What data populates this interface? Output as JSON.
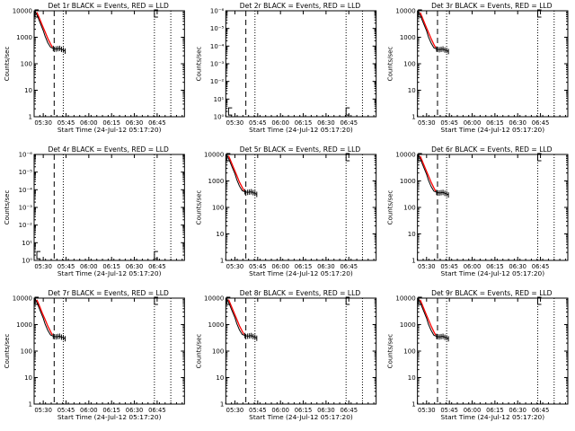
{
  "chart_data": [
    {
      "type": "line",
      "title": "Det 1r BLACK = Events, RED = LLD",
      "ylabel": "Counts/sec",
      "xlabel": "Start Time (24-Jul-12 05:17:20)",
      "yscale": "log",
      "ylim": [
        1,
        10000
      ],
      "ytick_labels": [
        "1",
        "10",
        "100",
        "1000",
        "10000"
      ],
      "xlim": [
        5.4,
        7.05
      ],
      "xtick_labels": [
        "05:30",
        "05:45",
        "06:00",
        "06:15",
        "06:30",
        "06:45"
      ],
      "dashed_line_x": 5.62,
      "dotted_lines_x": [
        5.72,
        6.72,
        6.9
      ],
      "series": [
        {
          "color": "#000000",
          "x": [
            5.41,
            5.44,
            5.47,
            5.5,
            5.52,
            5.55,
            5.58,
            5.61,
            5.64,
            5.66,
            5.68,
            5.7,
            5.72,
            5.74
          ],
          "y": [
            9800,
            5800,
            3200,
            1800,
            1100,
            620,
            420,
            380,
            360,
            370,
            380,
            350,
            330,
            300
          ]
        },
        {
          "color": "#ff0000",
          "x": [
            5.43,
            5.46,
            5.49,
            5.52,
            5.55,
            5.58,
            5.6
          ],
          "y": [
            8800,
            5000,
            2800,
            1600,
            900,
            560,
            420
          ]
        }
      ],
      "markers": [
        {
          "x": 5.41,
          "y": 10000
        },
        {
          "x": 6.72,
          "y": 10000
        }
      ]
    },
    {
      "type": "line",
      "title": "Det 2r BLACK = Events, RED = LLD",
      "ylabel": "Counts/sec",
      "xlabel": "Start Time (24-Jul-12 05:17:20)",
      "yscale": "log",
      "ylim": [
        1,
        1000000
      ],
      "ytick_labels": [
        "10⁰",
        "10¹",
        "10⁻²",
        "10⁻³",
        "10⁻⁴",
        "10⁻⁵",
        "10⁻⁶"
      ],
      "xlim": [
        5.4,
        7.05
      ],
      "xtick_labels": [
        "05:30",
        "05:45",
        "06:00",
        "06:15",
        "06:30",
        "06:45"
      ],
      "dashed_line_x": 5.62,
      "dotted_lines_x": [
        5.72,
        6.72,
        6.9
      ],
      "series": [],
      "markers": [
        {
          "x": 5.43,
          "y": 2
        },
        {
          "x": 6.72,
          "y": 2
        }
      ]
    },
    {
      "type": "line",
      "title": "Det 3r BLACK = Events, RED = LLD",
      "ylabel": "Counts/sec",
      "xlabel": "Start Time (24-Jul-12 05:17:20)",
      "yscale": "log",
      "ylim": [
        1,
        10000
      ],
      "ytick_labels": [
        "1",
        "10",
        "100",
        "1000",
        "10000"
      ],
      "xlim": [
        5.4,
        7.05
      ],
      "xtick_labels": [
        "05:30",
        "05:45",
        "06:00",
        "06:15",
        "06:30",
        "06:45"
      ],
      "dashed_line_x": 5.62,
      "dotted_lines_x": [
        5.72,
        6.72,
        6.9
      ],
      "series": [
        {
          "color": "#000000",
          "x": [
            5.41,
            5.44,
            5.47,
            5.5,
            5.52,
            5.55,
            5.58,
            5.61,
            5.64,
            5.66,
            5.68,
            5.7,
            5.72,
            5.74
          ],
          "y": [
            9500,
            5600,
            3100,
            1750,
            1050,
            600,
            400,
            360,
            340,
            350,
            360,
            330,
            320,
            290
          ]
        },
        {
          "color": "#ff0000",
          "x": [
            5.43,
            5.46,
            5.49,
            5.52,
            5.55,
            5.58,
            5.6
          ],
          "y": [
            8600,
            4900,
            2700,
            1550,
            880,
            540,
            400
          ]
        }
      ],
      "markers": [
        {
          "x": 5.41,
          "y": 10000
        },
        {
          "x": 6.72,
          "y": 10000
        }
      ]
    },
    {
      "type": "line",
      "title": "Det 4r BLACK = Events, RED = LLD",
      "ylabel": "Counts/sec",
      "xlabel": "Start Time (24-Jul-12 05:17:20)",
      "yscale": "log",
      "ylim": [
        1,
        1000000
      ],
      "ytick_labels": [
        "10⁰",
        "10¹",
        "10⁻²",
        "10⁻³",
        "10⁻⁴",
        "10⁻⁵",
        "10⁻⁶"
      ],
      "xlim": [
        5.4,
        7.05
      ],
      "xtick_labels": [
        "05:30",
        "05:45",
        "06:00",
        "06:15",
        "06:30",
        "06:45"
      ],
      "dashed_line_x": 5.62,
      "dotted_lines_x": [
        5.72,
        6.72,
        6.9
      ],
      "series": [],
      "markers": [
        {
          "x": 5.43,
          "y": 2
        },
        {
          "x": 6.72,
          "y": 2
        }
      ]
    },
    {
      "type": "line",
      "title": "Det 5r BLACK = Events, RED = LLD",
      "ylabel": "Counts/sec",
      "xlabel": "Start Time (24-Jul-12 05:17:20)",
      "yscale": "log",
      "ylim": [
        1,
        10000
      ],
      "ytick_labels": [
        "1",
        "10",
        "100",
        "1000",
        "10000"
      ],
      "xlim": [
        5.4,
        7.05
      ],
      "xtick_labels": [
        "05:30",
        "05:45",
        "06:00",
        "06:15",
        "06:30",
        "06:45"
      ],
      "dashed_line_x": 5.62,
      "dotted_lines_x": [
        5.72,
        6.72,
        6.9
      ],
      "series": [
        {
          "color": "#000000",
          "x": [
            5.41,
            5.44,
            5.47,
            5.5,
            5.52,
            5.55,
            5.58,
            5.61,
            5.64,
            5.66,
            5.68,
            5.7,
            5.72,
            5.74
          ],
          "y": [
            9900,
            5900,
            3300,
            1850,
            1120,
            640,
            430,
            390,
            370,
            380,
            390,
            360,
            340,
            310
          ]
        },
        {
          "color": "#ff0000",
          "x": [
            5.43,
            5.46,
            5.49,
            5.52,
            5.55,
            5.58,
            5.6
          ],
          "y": [
            8900,
            5100,
            2850,
            1620,
            910,
            570,
            430
          ]
        }
      ],
      "markers": [
        {
          "x": 5.41,
          "y": 10000
        },
        {
          "x": 6.72,
          "y": 10000
        }
      ]
    },
    {
      "type": "line",
      "title": "Det 6r BLACK = Events, RED = LLD",
      "ylabel": "Counts/sec",
      "xlabel": "Start Time (24-Jul-12 05:17:20)",
      "yscale": "log",
      "ylim": [
        1,
        10000
      ],
      "ytick_labels": [
        "1",
        "10",
        "100",
        "1000",
        "10000"
      ],
      "xlim": [
        5.4,
        7.05
      ],
      "xtick_labels": [
        "05:30",
        "05:45",
        "06:00",
        "06:15",
        "06:30",
        "06:45"
      ],
      "dashed_line_x": 5.62,
      "dotted_lines_x": [
        5.72,
        6.72,
        6.9
      ],
      "series": [
        {
          "color": "#000000",
          "x": [
            5.41,
            5.44,
            5.47,
            5.5,
            5.52,
            5.55,
            5.58,
            5.61,
            5.64,
            5.66,
            5.68,
            5.7,
            5.72,
            5.74
          ],
          "y": [
            9700,
            5700,
            3150,
            1780,
            1080,
            610,
            410,
            370,
            350,
            360,
            370,
            340,
            325,
            295
          ]
        },
        {
          "color": "#ff0000",
          "x": [
            5.43,
            5.46,
            5.49,
            5.52,
            5.55,
            5.58,
            5.6
          ],
          "y": [
            8700,
            4950,
            2750,
            1580,
            890,
            550,
            410
          ]
        }
      ],
      "markers": [
        {
          "x": 5.41,
          "y": 10000
        },
        {
          "x": 6.72,
          "y": 10000
        }
      ]
    },
    {
      "type": "line",
      "title": "Det 7r BLACK = Events, RED = LLD",
      "ylabel": "Counts/sec",
      "xlabel": "Start Time (24-Jul-12 05:17:20)",
      "yscale": "log",
      "ylim": [
        1,
        10000
      ],
      "ytick_labels": [
        "1",
        "10",
        "100",
        "1000",
        "10000"
      ],
      "xlim": [
        5.4,
        7.05
      ],
      "xtick_labels": [
        "05:30",
        "05:45",
        "06:00",
        "06:15",
        "06:30",
        "06:45"
      ],
      "dashed_line_x": 5.62,
      "dotted_lines_x": [
        5.72,
        6.72,
        6.9
      ],
      "series": [
        {
          "color": "#000000",
          "x": [
            5.41,
            5.44,
            5.47,
            5.5,
            5.52,
            5.55,
            5.58,
            5.61,
            5.64,
            5.66,
            5.68,
            5.7,
            5.72,
            5.74
          ],
          "y": [
            9600,
            5650,
            3120,
            1760,
            1060,
            605,
            405,
            365,
            345,
            355,
            365,
            335,
            322,
            292
          ]
        },
        {
          "color": "#ff0000",
          "x": [
            5.43,
            5.46,
            5.49,
            5.52,
            5.55,
            5.58,
            5.6
          ],
          "y": [
            8650,
            4920,
            2720,
            1560,
            885,
            545,
            405
          ]
        }
      ],
      "markers": [
        {
          "x": 5.41,
          "y": 10000
        },
        {
          "x": 6.72,
          "y": 10000
        }
      ]
    },
    {
      "type": "line",
      "title": "Det 8r BLACK = Events, RED = LLD",
      "ylabel": "Counts/sec",
      "xlabel": "Start Time (24-Jul-12 05:17:20)",
      "yscale": "log",
      "ylim": [
        1,
        10000
      ],
      "ytick_labels": [
        "1",
        "10",
        "100",
        "1000",
        "10000"
      ],
      "xlim": [
        5.4,
        7.05
      ],
      "xtick_labels": [
        "05:30",
        "05:45",
        "06:00",
        "06:15",
        "06:30",
        "06:45"
      ],
      "dashed_line_x": 5.62,
      "dotted_lines_x": [
        5.72,
        6.72,
        6.9
      ],
      "series": [
        {
          "color": "#000000",
          "x": [
            5.41,
            5.44,
            5.47,
            5.5,
            5.52,
            5.55,
            5.58,
            5.61,
            5.64,
            5.66,
            5.68,
            5.7,
            5.72,
            5.74
          ],
          "y": [
            9850,
            5850,
            3250,
            1820,
            1110,
            630,
            425,
            385,
            365,
            375,
            385,
            355,
            335,
            305
          ]
        },
        {
          "color": "#ff0000",
          "x": [
            5.43,
            5.46,
            5.49,
            5.52,
            5.55,
            5.58,
            5.6
          ],
          "y": [
            8850,
            5050,
            2820,
            1610,
            905,
            565,
            425
          ]
        }
      ],
      "markers": [
        {
          "x": 5.41,
          "y": 10000
        },
        {
          "x": 6.72,
          "y": 10000
        }
      ]
    },
    {
      "type": "line",
      "title": "Det 9r BLACK = Events, RED = LLD",
      "ylabel": "Counts/sec",
      "xlabel": "Start Time (24-Jul-12 05:17:20)",
      "yscale": "log",
      "ylim": [
        1,
        10000
      ],
      "ytick_labels": [
        "1",
        "10",
        "100",
        "1000",
        "10000"
      ],
      "xlim": [
        5.4,
        7.05
      ],
      "xtick_labels": [
        "05:30",
        "05:45",
        "06:00",
        "06:15",
        "06:30",
        "06:45"
      ],
      "dashed_line_x": 5.62,
      "dotted_lines_x": [
        5.72,
        6.72,
        6.9
      ],
      "series": [
        {
          "color": "#000000",
          "x": [
            5.41,
            5.44,
            5.47,
            5.5,
            5.52,
            5.55,
            5.58,
            5.61,
            5.64,
            5.66,
            5.68,
            5.7,
            5.72,
            5.74
          ],
          "y": [
            9550,
            5620,
            3110,
            1740,
            1040,
            600,
            398,
            360,
            342,
            352,
            362,
            332,
            320,
            290
          ]
        },
        {
          "color": "#ff0000",
          "x": [
            5.43,
            5.46,
            5.49,
            5.52,
            5.55,
            5.58,
            5.6
          ],
          "y": [
            8620,
            4900,
            2710,
            1550,
            880,
            540,
            400
          ]
        }
      ],
      "markers": [
        {
          "x": 5.41,
          "y": 10000
        },
        {
          "x": 6.72,
          "y": 10000
        }
      ]
    }
  ]
}
